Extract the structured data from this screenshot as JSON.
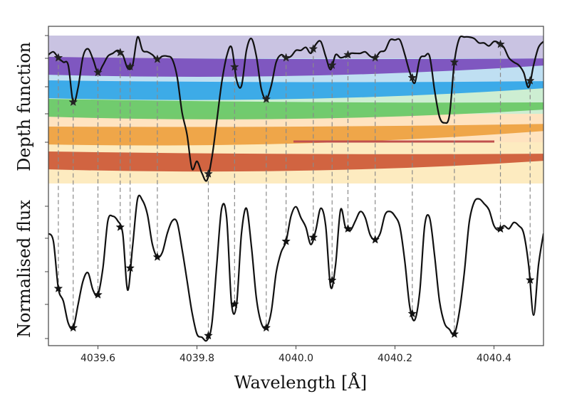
{
  "chart_data": {
    "type": "line",
    "xlabel": "Wavelength [Å]",
    "xlim": [
      4039.5,
      4040.5
    ],
    "x_ticks": [
      "4039.6",
      "4039.8",
      "4040.0",
      "4040.2",
      "4040.4"
    ],
    "x_tick_values": [
      4039.6,
      4039.8,
      4040.0,
      4040.2,
      4040.4
    ],
    "panels": [
      {
        "name": "depth-function",
        "ylabel": "Depth function",
        "ylim": [
          0,
          1
        ],
        "layer_colors": [
          "#7b4fbd",
          "#35a7e8",
          "#6cc868",
          "#eea242",
          "#cf5d3a"
        ],
        "band_colors": [
          "#c9c3e2",
          "#bfdff2",
          "#cdeed2",
          "#ffe3c0",
          "#fdebc0"
        ],
        "highlight_color": "#c0504d",
        "series": [
          {
            "name": "depth",
            "x": [
              4039.5,
              4039.51,
              4039.52,
              4039.53,
              4039.54,
              4039.55,
              4039.56,
              4039.57,
              4039.58,
              4039.59,
              4039.6,
              4039.61,
              4039.62,
              4039.63,
              4039.64,
              4039.65,
              4039.66,
              4039.67,
              4039.68,
              4039.69,
              4039.7,
              4039.71,
              4039.72,
              4039.73,
              4039.74,
              4039.75,
              4039.76,
              4039.77,
              4039.78,
              4039.79,
              4039.8,
              4039.81,
              4039.82,
              4039.83,
              4039.84,
              4039.85,
              4039.86,
              4039.87,
              4039.88,
              4039.89,
              4039.9,
              4039.91,
              4039.92,
              4039.93,
              4039.94,
              4039.95,
              4039.96,
              4039.97,
              4039.98,
              4039.99,
              4040.0,
              4040.01,
              4040.02,
              4040.03,
              4040.04,
              4040.05,
              4040.06,
              4040.07,
              4040.08,
              4040.09,
              4040.1,
              4040.11,
              4040.12,
              4040.13,
              4040.14,
              4040.15,
              4040.16,
              4040.17,
              4040.18,
              4040.19,
              4040.2,
              4040.21,
              4040.22,
              4040.23,
              4040.24,
              4040.25,
              4040.26,
              4040.27,
              4040.28,
              4040.29,
              4040.3,
              4040.31,
              4040.32,
              4040.33,
              4040.34,
              4040.35,
              4040.36,
              4040.37,
              4040.38,
              4040.39,
              4040.4,
              4040.41,
              4040.42,
              4040.43,
              4040.44,
              4040.45,
              4040.46,
              4040.47,
              4040.48,
              4040.49,
              4040.5
            ],
            "y": [
              0.87,
              0.89,
              0.85,
              0.82,
              0.8,
              0.55,
              0.65,
              0.86,
              0.91,
              0.84,
              0.75,
              0.8,
              0.86,
              0.88,
              0.9,
              0.87,
              0.78,
              0.8,
              0.99,
              0.9,
              0.89,
              0.87,
              0.84,
              0.86,
              0.86,
              0.84,
              0.72,
              0.48,
              0.33,
              0.1,
              0.15,
              0.07,
              0.02,
              0.17,
              0.42,
              0.68,
              0.86,
              0.92,
              0.7,
              0.66,
              0.9,
              0.98,
              0.86,
              0.64,
              0.57,
              0.66,
              0.82,
              0.87,
              0.85,
              0.86,
              0.9,
              0.9,
              0.92,
              0.88,
              0.94,
              0.96,
              0.86,
              0.77,
              0.87,
              0.85,
              0.86,
              0.88,
              0.88,
              0.88,
              0.89,
              0.86,
              0.85,
              0.89,
              0.9,
              0.97,
              0.97,
              0.97,
              0.87,
              0.75,
              0.68,
              0.84,
              0.86,
              0.86,
              0.63,
              0.45,
              0.41,
              0.46,
              0.82,
              0.98,
              0.99,
              0.99,
              0.98,
              0.95,
              0.95,
              0.93,
              0.96,
              0.95,
              0.92,
              0.85,
              0.82,
              0.8,
              0.75,
              0.65,
              0.8,
              0.92,
              0.96
            ],
            "markers_x": [
              4039.52,
              4039.55,
              4039.6,
              4039.645,
              4039.665,
              4039.72,
              4039.823,
              4039.876,
              4039.94,
              4039.98,
              4040.035,
              4040.073,
              4040.105,
              4040.16,
              4040.235,
              4040.32,
              4040.413,
              4040.473
            ]
          }
        ]
      },
      {
        "name": "normalised-flux",
        "ylabel": "Normalised flux",
        "ylim": [
          0,
          1
        ],
        "series": [
          {
            "name": "flux",
            "x": [
              4039.5,
              4039.51,
              4039.52,
              4039.53,
              4039.54,
              4039.55,
              4039.56,
              4039.57,
              4039.58,
              4039.59,
              4039.6,
              4039.61,
              4039.62,
              4039.63,
              4039.64,
              4039.65,
              4039.66,
              4039.67,
              4039.68,
              4039.69,
              4039.7,
              4039.71,
              4039.72,
              4039.73,
              4039.74,
              4039.75,
              4039.76,
              4039.77,
              4039.78,
              4039.79,
              4039.8,
              4039.81,
              4039.82,
              4039.83,
              4039.84,
              4039.85,
              4039.86,
              4039.87,
              4039.88,
              4039.89,
              4039.9,
              4039.91,
              4039.92,
              4039.93,
              4039.94,
              4039.95,
              4039.96,
              4039.97,
              4039.98,
              4039.99,
              4040.0,
              4040.01,
              4040.02,
              4040.03,
              4040.04,
              4040.05,
              4040.06,
              4040.07,
              4040.08,
              4040.09,
              4040.1,
              4040.11,
              4040.12,
              4040.13,
              4040.14,
              4040.15,
              4040.16,
              4040.17,
              4040.18,
              4040.19,
              4040.2,
              4040.21,
              4040.22,
              4040.23,
              4040.24,
              4040.25,
              4040.26,
              4040.27,
              4040.28,
              4040.29,
              4040.3,
              4040.31,
              4040.32,
              4040.33,
              4040.34,
              4040.35,
              4040.36,
              4040.37,
              4040.38,
              4040.39,
              4040.4,
              4040.41,
              4040.42,
              4040.43,
              4040.44,
              4040.45,
              4040.46,
              4040.47,
              4040.48,
              4040.49,
              4040.5
            ],
            "y": [
              0.7,
              0.65,
              0.35,
              0.27,
              0.13,
              0.1,
              0.25,
              0.4,
              0.45,
              0.34,
              0.31,
              0.48,
              0.78,
              0.81,
              0.78,
              0.7,
              0.34,
              0.62,
              0.92,
              0.91,
              0.82,
              0.63,
              0.55,
              0.58,
              0.7,
              0.78,
              0.77,
              0.6,
              0.4,
              0.2,
              0.06,
              0.04,
              0.02,
              0.12,
              0.5,
              0.86,
              0.8,
              0.25,
              0.25,
              0.7,
              0.86,
              0.62,
              0.29,
              0.13,
              0.1,
              0.2,
              0.45,
              0.58,
              0.65,
              0.81,
              0.87,
              0.8,
              0.74,
              0.63,
              0.72,
              0.86,
              0.75,
              0.36,
              0.5,
              0.85,
              0.74,
              0.72,
              0.78,
              0.84,
              0.8,
              0.69,
              0.66,
              0.7,
              0.82,
              0.84,
              0.81,
              0.74,
              0.52,
              0.23,
              0.15,
              0.33,
              0.75,
              0.8,
              0.56,
              0.27,
              0.13,
              0.09,
              0.06,
              0.2,
              0.45,
              0.77,
              0.9,
              0.92,
              0.89,
              0.85,
              0.75,
              0.72,
              0.75,
              0.73,
              0.77,
              0.75,
              0.7,
              0.5,
              0.18,
              0.5,
              0.7
            ],
            "markers_x": [
              4039.52,
              4039.55,
              4039.6,
              4039.645,
              4039.665,
              4039.72,
              4039.823,
              4039.876,
              4039.94,
              4039.98,
              4040.035,
              4040.073,
              4040.105,
              4040.16,
              4040.235,
              4040.32,
              4040.413,
              4040.473
            ]
          }
        ]
      }
    ]
  }
}
